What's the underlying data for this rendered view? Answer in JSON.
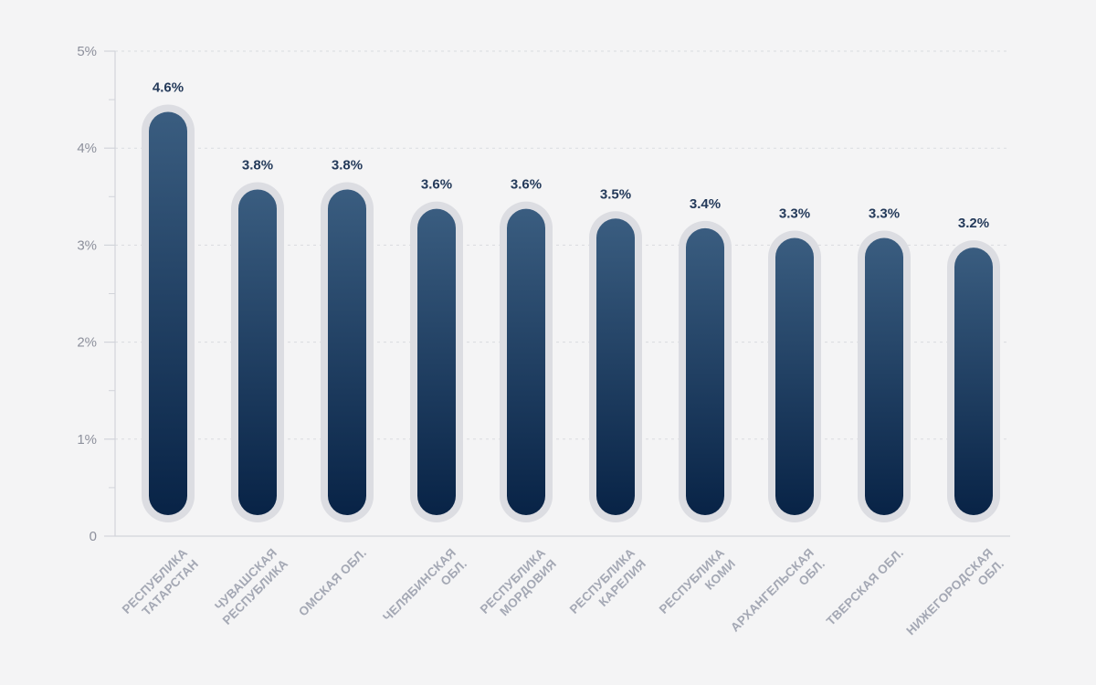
{
  "chart_data": {
    "type": "bar",
    "title": "",
    "xlabel": "",
    "ylabel": "",
    "ylim": [
      0,
      5
    ],
    "grid": true,
    "y_ticks": [
      "0",
      "1%",
      "2%",
      "3%",
      "4%",
      "5%"
    ],
    "categories": [
      [
        "РЕСПУБЛИКА",
        "ТАТАРСТАН"
      ],
      [
        "ЧУВАШСКАЯ",
        "РЕСПУБЛИКА"
      ],
      [
        "ОМСКАЯ ОБЛ."
      ],
      [
        "ЧЕЛЯБИНСКАЯ",
        "ОБЛ."
      ],
      [
        "РЕСПУБЛИКА",
        "МОРДОВИЯ"
      ],
      [
        "РЕСПУБЛИКА",
        "КАРЕЛИЯ"
      ],
      [
        "РЕСПУБЛИКА",
        "КОМИ"
      ],
      [
        "АРХАНГЕЛЬСКАЯ",
        "ОБЛ."
      ],
      [
        "ТВЕРСКАЯ ОБЛ."
      ],
      [
        "НИЖЕГОРОДСКАЯ",
        "ОБЛ."
      ]
    ],
    "values": [
      4.6,
      3.8,
      3.8,
      3.6,
      3.6,
      3.5,
      3.4,
      3.3,
      3.3,
      3.2
    ],
    "value_labels": [
      "4.6%",
      "3.8%",
      "3.8%",
      "3.6%",
      "3.6%",
      "3.5%",
      "3.4%",
      "3.3%",
      "3.3%",
      "3.2%"
    ],
    "colors": {
      "bar_top": "#3a5d80",
      "bar_bottom": "#082346",
      "bar_halo": "#dcdde2",
      "value_label": "#243a5a",
      "axis": "#d2d4da",
      "grid": "#d9dbe0",
      "tick_text": "#8d909c",
      "category_text": "#a4a8b4"
    }
  }
}
